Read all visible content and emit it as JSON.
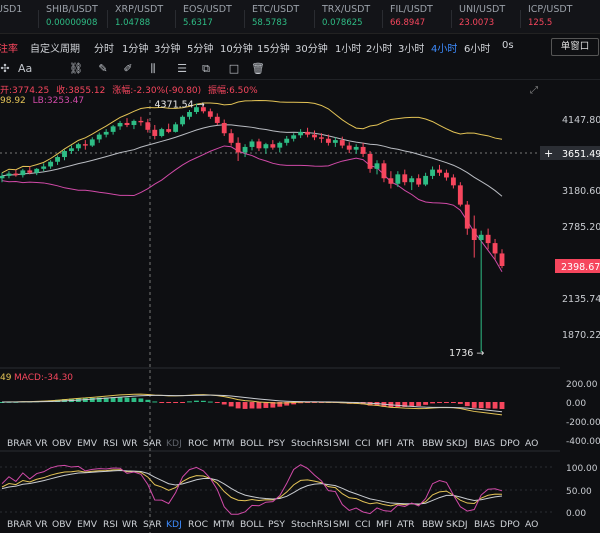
{
  "ticker": [
    {
      "name": "USD1",
      "price": "",
      "partial": true,
      "price_color": "#2ebd85"
    },
    {
      "name": "SHIB/USDT",
      "price": "0.00000908",
      "price_color": "#2ebd85"
    },
    {
      "name": "XRP/USDT",
      "price": "1.04788",
      "price_color": "#2ebd85"
    },
    {
      "name": "EOS/USDT",
      "price": "5.6317",
      "price_color": "#2ebd85"
    },
    {
      "name": "ETC/USDT",
      "price": "58.5783",
      "price_color": "#2ebd85"
    },
    {
      "name": "TRX/USDT",
      "price": "0.078625",
      "price_color": "#2ebd85"
    },
    {
      "name": "FIL/USDT",
      "price": "66.8947",
      "price_color": "#f6465d"
    },
    {
      "name": "UNI/USDT",
      "price": "23.0073",
      "price_color": "#f6465d"
    },
    {
      "name": "ICP/USDT",
      "price": "125.5",
      "price_color": "#f6465d"
    }
  ],
  "intervals": {
    "tab_partial": "注率",
    "items": [
      "自定义周期",
      "分时",
      "1分钟",
      "3分钟",
      "5分钟",
      "10分钟",
      "15分钟",
      "30分钟",
      "1小时",
      "2小时",
      "3小时",
      "4小时",
      "6小时"
    ],
    "active": "4小时",
    "trailing": "0s",
    "window_button": "单窗口"
  },
  "tools": [
    "crosshair-icon",
    "text-icon",
    "link-icon",
    "pencil-icon",
    "brush-icon",
    "columns-icon",
    "stack-icon",
    "copy-icon",
    "square-icon",
    "trash-icon"
  ],
  "tools_text": {
    "text": "Aa"
  },
  "info": {
    "open_partial": "开:3774.25",
    "close": "收:3855.12",
    "change": "涨幅:-2.30%(-90.80)",
    "amplitude": "振幅:6.50%",
    "ma_partial": "98.92",
    "lb": "LB:3253.47"
  },
  "main_chart": {
    "y_ticks": [
      "4147.80",
      "3651.49",
      "3180.60",
      "2785.20",
      "2398.67",
      "2135.74",
      "1870.22"
    ],
    "high_label": "4371.54",
    "low_label": "1736",
    "current_price": "2398.67",
    "crosshair_price": "3651.49",
    "crosshair_plus": "+"
  },
  "macd": {
    "label_partial": "49",
    "label": "MACD:-34.30",
    "y_ticks": [
      "200.00",
      "0.00",
      "-200.00",
      "-400.00"
    ]
  },
  "kdj": {
    "y_ticks": [
      "100.00",
      "50.00",
      "0.00"
    ]
  },
  "indicator_tabs": [
    "BRAR",
    "VR",
    "OBV",
    "EMV",
    "RSI",
    "WR",
    "SAR",
    "KDJ",
    "ROC",
    "MTM",
    "BOLL",
    "PSY",
    "StochRSI",
    "SMI",
    "CCI",
    "MFI",
    "ATR",
    "BBW",
    "SKDJ",
    "BIAS",
    "DPO",
    "AO"
  ],
  "indicator_tabs_selected_top": "KDJ",
  "indicator_tabs_selected_bottom": "KDJ",
  "colors": {
    "up": "#2ebd85",
    "down": "#f6465d",
    "accent": "#3d8bfd",
    "boll_upper": "#e3c356",
    "boll_mid": "#b9bcc2",
    "boll_lower": "#d14aa8"
  },
  "chart_data": {
    "type": "candlestick",
    "interval": "4小时",
    "price_axis_ticks": [
      4147.8,
      3651.49,
      3180.6,
      2785.2,
      2398.67,
      2135.74,
      1870.22
    ],
    "candles": [
      {
        "o": 3330,
        "h": 3400,
        "l": 3280,
        "c": 3360
      },
      {
        "o": 3360,
        "h": 3420,
        "l": 3330,
        "c": 3390
      },
      {
        "o": 3390,
        "h": 3440,
        "l": 3350,
        "c": 3370
      },
      {
        "o": 3370,
        "h": 3450,
        "l": 3340,
        "c": 3430
      },
      {
        "o": 3430,
        "h": 3480,
        "l": 3380,
        "c": 3400
      },
      {
        "o": 3400,
        "h": 3460,
        "l": 3370,
        "c": 3450
      },
      {
        "o": 3450,
        "h": 3520,
        "l": 3420,
        "c": 3480
      },
      {
        "o": 3480,
        "h": 3560,
        "l": 3450,
        "c": 3540
      },
      {
        "o": 3540,
        "h": 3620,
        "l": 3500,
        "c": 3600
      },
      {
        "o": 3600,
        "h": 3700,
        "l": 3560,
        "c": 3680
      },
      {
        "o": 3680,
        "h": 3760,
        "l": 3640,
        "c": 3720
      },
      {
        "o": 3720,
        "h": 3800,
        "l": 3680,
        "c": 3780
      },
      {
        "o": 3780,
        "h": 3840,
        "l": 3700,
        "c": 3760
      },
      {
        "o": 3760,
        "h": 3880,
        "l": 3740,
        "c": 3850
      },
      {
        "o": 3850,
        "h": 3950,
        "l": 3800,
        "c": 3920
      },
      {
        "o": 3920,
        "h": 4000,
        "l": 3880,
        "c": 3960
      },
      {
        "o": 3960,
        "h": 4060,
        "l": 3920,
        "c": 4040
      },
      {
        "o": 4040,
        "h": 4120,
        "l": 3990,
        "c": 4090
      },
      {
        "o": 4090,
        "h": 4160,
        "l": 4030,
        "c": 4060
      },
      {
        "o": 4060,
        "h": 4140,
        "l": 4000,
        "c": 4120
      },
      {
        "o": 4120,
        "h": 4180,
        "l": 4050,
        "c": 4100
      },
      {
        "o": 4100,
        "h": 4150,
        "l": 3950,
        "c": 3990
      },
      {
        "o": 3990,
        "h": 4060,
        "l": 3850,
        "c": 3900
      },
      {
        "o": 3900,
        "h": 4020,
        "l": 3880,
        "c": 4000
      },
      {
        "o": 4000,
        "h": 4080,
        "l": 3940,
        "c": 3960
      },
      {
        "o": 3960,
        "h": 4100,
        "l": 3950,
        "c": 4070
      },
      {
        "o": 4070,
        "h": 4200,
        "l": 4040,
        "c": 4180
      },
      {
        "o": 4180,
        "h": 4280,
        "l": 4140,
        "c": 4250
      },
      {
        "o": 4250,
        "h": 4371.54,
        "l": 4220,
        "c": 4320
      },
      {
        "o": 4320,
        "h": 4360,
        "l": 4230,
        "c": 4260
      },
      {
        "o": 4260,
        "h": 4300,
        "l": 4150,
        "c": 4180
      },
      {
        "o": 4180,
        "h": 4230,
        "l": 4060,
        "c": 4090
      },
      {
        "o": 4090,
        "h": 4140,
        "l": 3900,
        "c": 3940
      },
      {
        "o": 3940,
        "h": 4000,
        "l": 3760,
        "c": 3800
      },
      {
        "o": 3800,
        "h": 3880,
        "l": 3550,
        "c": 3660
      },
      {
        "o": 3660,
        "h": 3780,
        "l": 3600,
        "c": 3740
      },
      {
        "o": 3740,
        "h": 3850,
        "l": 3690,
        "c": 3820
      },
      {
        "o": 3820,
        "h": 3860,
        "l": 3680,
        "c": 3720
      },
      {
        "o": 3720,
        "h": 3800,
        "l": 3640,
        "c": 3780
      },
      {
        "o": 3780,
        "h": 3840,
        "l": 3700,
        "c": 3730
      },
      {
        "o": 3730,
        "h": 3820,
        "l": 3660,
        "c": 3800
      },
      {
        "o": 3800,
        "h": 3900,
        "l": 3760,
        "c": 3860
      },
      {
        "o": 3860,
        "h": 3940,
        "l": 3820,
        "c": 3910
      },
      {
        "o": 3910,
        "h": 4000,
        "l": 3870,
        "c": 3960
      },
      {
        "o": 3960,
        "h": 4020,
        "l": 3880,
        "c": 3920
      },
      {
        "o": 3920,
        "h": 3980,
        "l": 3840,
        "c": 3880
      },
      {
        "o": 3880,
        "h": 3940,
        "l": 3800,
        "c": 3860
      },
      {
        "o": 3860,
        "h": 3920,
        "l": 3760,
        "c": 3800
      },
      {
        "o": 3800,
        "h": 3880,
        "l": 3740,
        "c": 3840
      },
      {
        "o": 3840,
        "h": 3890,
        "l": 3720,
        "c": 3760
      },
      {
        "o": 3760,
        "h": 3810,
        "l": 3650,
        "c": 3700
      },
      {
        "o": 3700,
        "h": 3780,
        "l": 3640,
        "c": 3740
      },
      {
        "o": 3740,
        "h": 3800,
        "l": 3600,
        "c": 3640
      },
      {
        "o": 3640,
        "h": 3680,
        "l": 3400,
        "c": 3450
      },
      {
        "o": 3450,
        "h": 3560,
        "l": 3380,
        "c": 3520
      },
      {
        "o": 3520,
        "h": 3560,
        "l": 3280,
        "c": 3330
      },
      {
        "o": 3330,
        "h": 3420,
        "l": 3200,
        "c": 3260
      },
      {
        "o": 3260,
        "h": 3420,
        "l": 3220,
        "c": 3380
      },
      {
        "o": 3380,
        "h": 3440,
        "l": 3240,
        "c": 3280
      },
      {
        "o": 3280,
        "h": 3360,
        "l": 3180,
        "c": 3330
      },
      {
        "o": 3330,
        "h": 3380,
        "l": 3220,
        "c": 3250
      },
      {
        "o": 3250,
        "h": 3400,
        "l": 3230,
        "c": 3360
      },
      {
        "o": 3360,
        "h": 3480,
        "l": 3320,
        "c": 3440
      },
      {
        "o": 3440,
        "h": 3500,
        "l": 3360,
        "c": 3400
      },
      {
        "o": 3400,
        "h": 3440,
        "l": 3300,
        "c": 3340
      },
      {
        "o": 3340,
        "h": 3380,
        "l": 3200,
        "c": 3240
      },
      {
        "o": 3240,
        "h": 3280,
        "l": 3000,
        "c": 3020
      },
      {
        "o": 3020,
        "h": 3060,
        "l": 2700,
        "c": 2760
      },
      {
        "o": 2760,
        "h": 2900,
        "l": 2480,
        "c": 2650
      },
      {
        "o": 2650,
        "h": 2740,
        "l": 1736,
        "c": 2700
      },
      {
        "o": 2700,
        "h": 2760,
        "l": 2560,
        "c": 2620
      },
      {
        "o": 2620,
        "h": 2660,
        "l": 2460,
        "c": 2520
      },
      {
        "o": 2520,
        "h": 2560,
        "l": 2380,
        "c": 2398.67
      }
    ]
  }
}
